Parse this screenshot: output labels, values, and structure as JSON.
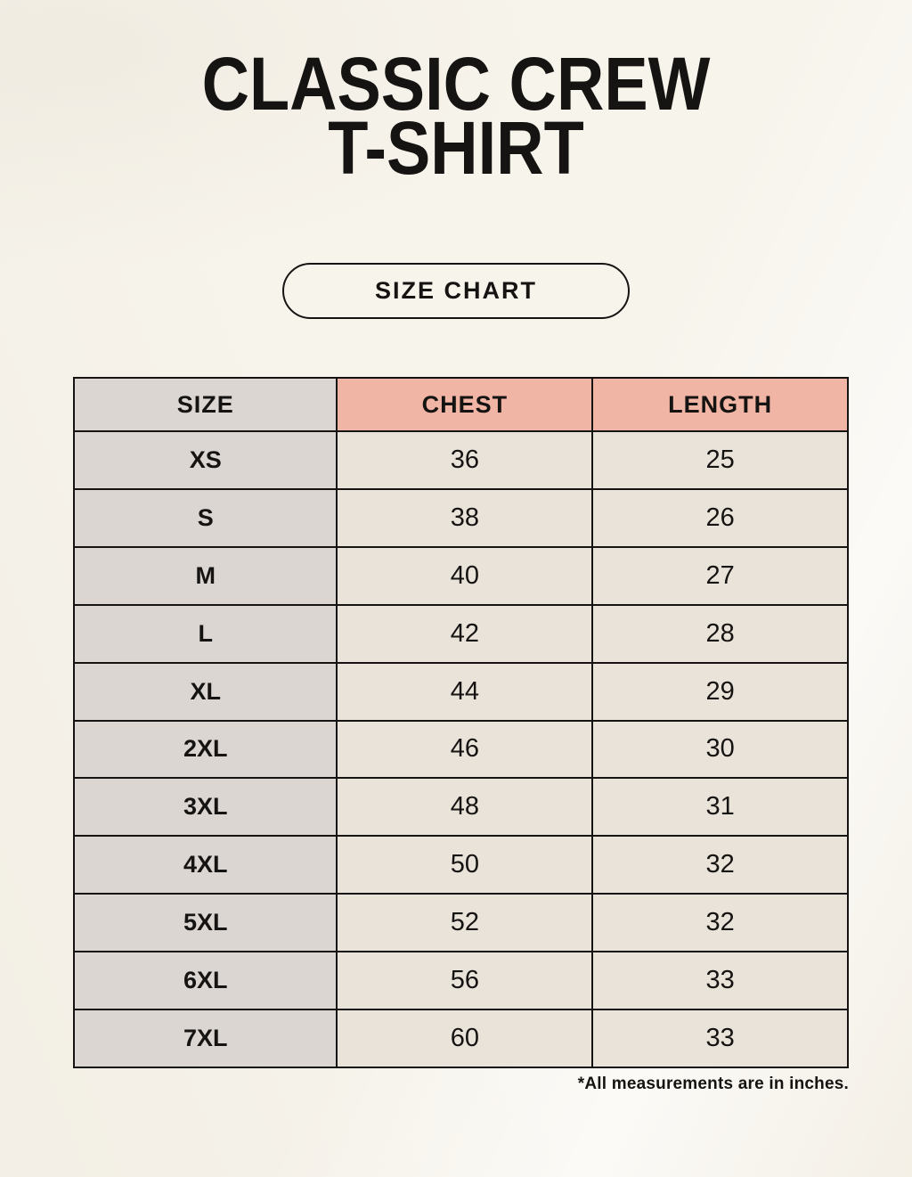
{
  "header": {
    "title_line1": "CLASSIC CREW",
    "title_line2": "T-SHIRT",
    "badge_label": "SIZE CHART"
  },
  "footer": {
    "note": "*All measurements are in inches."
  },
  "colors": {
    "background": "#f7f4ec",
    "size_column": "#dcd6d2",
    "header_accent": "#f0b5a4",
    "value_cell": "#eae3d9",
    "border": "#161412",
    "text": "#161412"
  },
  "chart_data": {
    "type": "table",
    "title": "Classic Crew T-Shirt Size Chart",
    "columns": [
      "SIZE",
      "CHEST",
      "LENGTH"
    ],
    "rows": [
      [
        "XS",
        "36",
        "25"
      ],
      [
        "S",
        "38",
        "26"
      ],
      [
        "M",
        "40",
        "27"
      ],
      [
        "L",
        "42",
        "28"
      ],
      [
        "XL",
        "44",
        "29"
      ],
      [
        "2XL",
        "46",
        "30"
      ],
      [
        "3XL",
        "48",
        "31"
      ],
      [
        "4XL",
        "50",
        "32"
      ],
      [
        "5XL",
        "52",
        "32"
      ],
      [
        "6XL",
        "56",
        "33"
      ],
      [
        "7XL",
        "60",
        "33"
      ]
    ],
    "units": "inches"
  }
}
